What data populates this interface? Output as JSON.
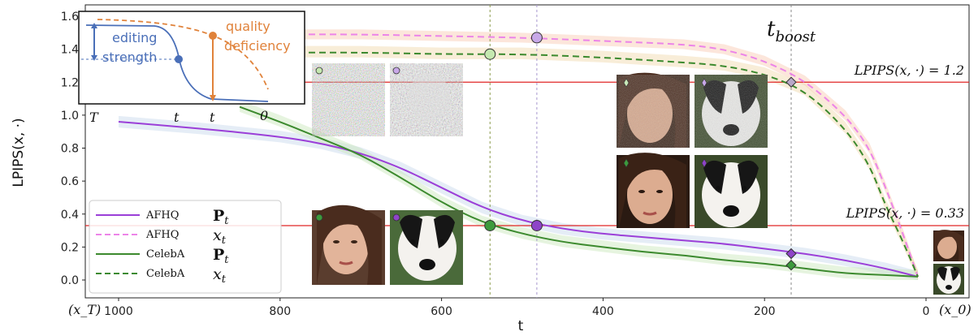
{
  "chart_data": {
    "type": "line",
    "title": "",
    "xlabel": "t",
    "ylabel": "LPIPS(x, ·)",
    "xlim": [
      1000,
      0
    ],
    "ylim": [
      0.0,
      1.6
    ],
    "x_ticks": [
      "1000",
      "800",
      "600",
      "400",
      "200",
      "0"
    ],
    "x_tick_values": [
      1000,
      800,
      600,
      400,
      200,
      0
    ],
    "x_end_left": "(x_T)",
    "x_end_right": "(x_0)",
    "y_ticks": [
      "0.0",
      "0.2",
      "0.4",
      "0.6",
      "0.8",
      "1.0",
      "1.2",
      "1.4",
      "1.6"
    ],
    "y_tick_values": [
      0.0,
      0.2,
      0.4,
      0.6,
      0.8,
      1.0,
      1.2,
      1.4,
      1.6
    ],
    "series": [
      {
        "name": "AFHQ",
        "symbol": "P_t",
        "color": "#9b3fd8",
        "dash": "solid",
        "x": [
          1000,
          900,
          800,
          750,
          700,
          650,
          600,
          550,
          500,
          450,
          400,
          350,
          300,
          250,
          200,
          150,
          100,
          50,
          10
        ],
        "y": [
          0.96,
          0.92,
          0.87,
          0.83,
          0.77,
          0.68,
          0.56,
          0.44,
          0.36,
          0.31,
          0.28,
          0.26,
          0.24,
          0.22,
          0.19,
          0.16,
          0.12,
          0.07,
          0.02
        ]
      },
      {
        "name": "AFHQ",
        "symbol": "x_t",
        "color": "#ec84e8",
        "dash": "dashed",
        "x": [
          1000,
          900,
          800,
          700,
          600,
          500,
          400,
          300,
          250,
          200,
          150,
          100,
          70,
          50,
          30,
          10
        ],
        "y": [
          1.5,
          1.5,
          1.49,
          1.49,
          1.48,
          1.47,
          1.45,
          1.43,
          1.4,
          1.33,
          1.21,
          1.0,
          0.8,
          0.56,
          0.3,
          0.02
        ]
      },
      {
        "name": "CelebA",
        "symbol": "P_t",
        "color": "#3c8a2e",
        "dash": "solid",
        "x": [
          850,
          800,
          750,
          700,
          650,
          600,
          550,
          500,
          450,
          400,
          350,
          300,
          250,
          200,
          150,
          100,
          50,
          10
        ],
        "y": [
          1.05,
          0.96,
          0.86,
          0.76,
          0.62,
          0.47,
          0.35,
          0.28,
          0.23,
          0.2,
          0.17,
          0.15,
          0.12,
          0.1,
          0.07,
          0.04,
          0.03,
          0.02
        ]
      },
      {
        "name": "CelebA",
        "symbol": "x_t",
        "color": "#3c8a2e",
        "dash": "dashed",
        "x": [
          1000,
          900,
          800,
          700,
          600,
          500,
          400,
          300,
          250,
          200,
          150,
          100,
          70,
          50,
          30,
          10
        ],
        "y": [
          1.38,
          1.38,
          1.38,
          1.38,
          1.37,
          1.37,
          1.35,
          1.32,
          1.3,
          1.25,
          1.15,
          0.92,
          0.7,
          0.45,
          0.25,
          0.02
        ]
      }
    ],
    "hlines": [
      {
        "y": 1.2,
        "label": "LPIPS(x, ·) = 1.2",
        "color": "#e02626"
      },
      {
        "y": 0.33,
        "label": "LPIPS(x, ·) = 0.33",
        "color": "#e02626"
      }
    ],
    "vlines": [
      {
        "x": 540,
        "color": "#8a9a4a"
      },
      {
        "x": 482,
        "color": "#a898d0"
      },
      {
        "x": 167,
        "color": "#888888"
      }
    ],
    "markers": [
      {
        "x": 540,
        "y": 1.37,
        "shape": "circle",
        "fill": "#c5e8b0"
      },
      {
        "x": 482,
        "y": 1.47,
        "shape": "circle",
        "fill": "#c8a8e8"
      },
      {
        "x": 540,
        "y": 0.33,
        "shape": "circle",
        "fill": "#3c9a3c"
      },
      {
        "x": 482,
        "y": 0.33,
        "shape": "circle",
        "fill": "#8e44c8"
      },
      {
        "x": 167,
        "y": 1.2,
        "shape": "diamond",
        "fill": "#b8a8c8"
      },
      {
        "x": 167,
        "y": 0.16,
        "shape": "diamond",
        "fill": "#8e44c8"
      },
      {
        "x": 167,
        "y": 0.09,
        "shape": "diamond",
        "fill": "#3c9a3c"
      }
    ],
    "annotation": "t_boost",
    "legend": {
      "placement": "bottom-left",
      "entries": [
        {
          "label": "AFHQ",
          "symbol": "P_t"
        },
        {
          "label": "AFHQ",
          "symbol": "x_t"
        },
        {
          "label": "CelebA",
          "symbol": "P_t"
        },
        {
          "label": "CelebA",
          "symbol": "x_t"
        }
      ]
    },
    "inset": {
      "label_editing": "editing",
      "label_strength": "strength",
      "label_quality": "quality",
      "label_deficiency": "deficiency",
      "tick_T": "T",
      "tick_t1": "t",
      "tick_t2": "t",
      "tick_0": "0",
      "color_blue": "#4a6fb8",
      "color_orange": "#e0823a"
    }
  }
}
